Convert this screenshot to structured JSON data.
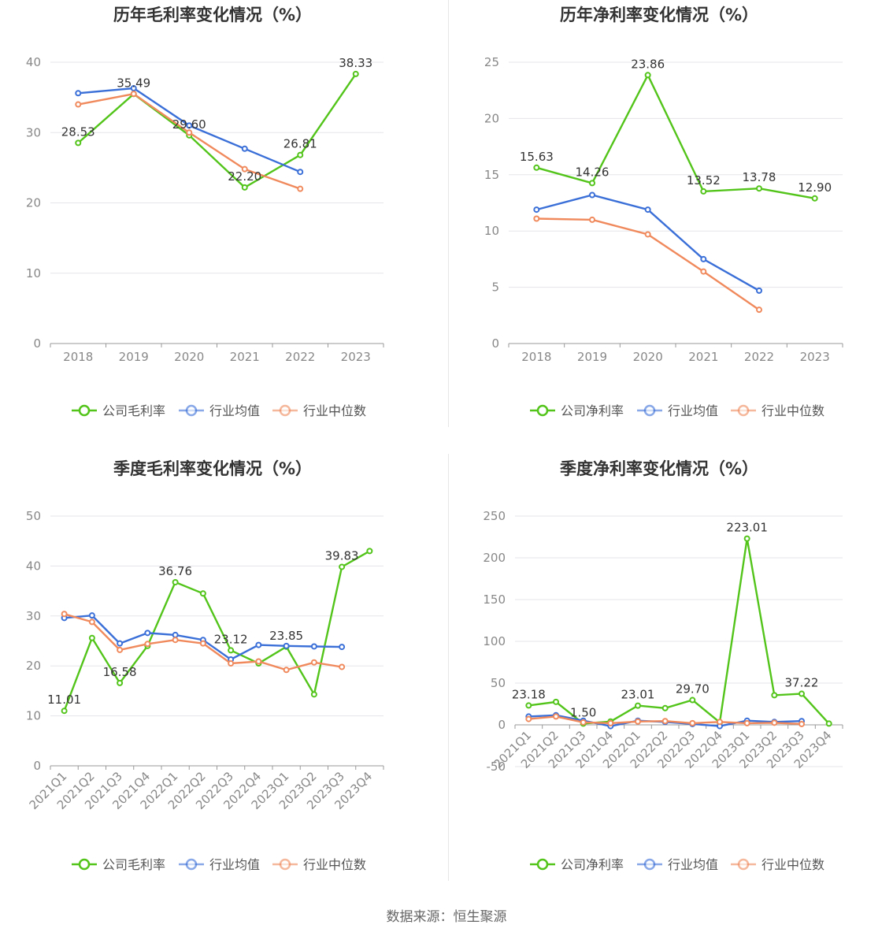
{
  "source_label": "数据来源：恒生聚源",
  "colors": {
    "company": "#52c41a",
    "avg": "#3a6fd8",
    "median": "#f08a5d",
    "grid": "#e5e5ea",
    "axis": "#999999"
  },
  "chart_data": [
    {
      "type": "line",
      "title": "历年毛利率变化情况（%）",
      "categories": [
        "2018",
        "2019",
        "2020",
        "2021",
        "2022",
        "2023"
      ],
      "ylim": [
        0,
        40
      ],
      "yticks": [
        0,
        10,
        20,
        30,
        40
      ],
      "series": [
        {
          "name": "公司毛利率",
          "values": [
            28.53,
            35.49,
            29.6,
            22.2,
            26.81,
            38.33
          ],
          "labels": [
            true,
            true,
            true,
            true,
            true,
            true
          ]
        },
        {
          "name": "行业均值",
          "values": [
            35.6,
            36.3,
            31.0,
            27.7,
            24.4,
            null
          ]
        },
        {
          "name": "行业中位数",
          "values": [
            34.0,
            35.5,
            30.0,
            24.8,
            22.0,
            null
          ]
        }
      ],
      "legend": "bottom"
    },
    {
      "type": "line",
      "title": "历年净利率变化情况（%）",
      "categories": [
        "2018",
        "2019",
        "2020",
        "2021",
        "2022",
        "2023"
      ],
      "ylim": [
        0,
        25
      ],
      "yticks": [
        0,
        5,
        10,
        15,
        20,
        25
      ],
      "series": [
        {
          "name": "公司净利率",
          "values": [
            15.63,
            14.26,
            23.86,
            13.52,
            13.78,
            12.9
          ],
          "labels": [
            true,
            true,
            true,
            true,
            true,
            true
          ]
        },
        {
          "name": "行业均值",
          "values": [
            11.9,
            13.2,
            11.9,
            7.5,
            4.7,
            null
          ]
        },
        {
          "name": "行业中位数",
          "values": [
            11.1,
            11.0,
            9.7,
            6.4,
            3.0,
            null
          ]
        }
      ],
      "legend": "bottom"
    },
    {
      "type": "line",
      "title": "季度毛利率变化情况（%）",
      "categories": [
        "2021Q1",
        "2021Q2",
        "2021Q3",
        "2021Q4",
        "2022Q1",
        "2022Q2",
        "2022Q3",
        "2022Q4",
        "2023Q1",
        "2023Q2",
        "2023Q3",
        "2023Q4"
      ],
      "ylim": [
        0,
        50
      ],
      "yticks": [
        0,
        10,
        20,
        30,
        40,
        50
      ],
      "series": [
        {
          "name": "公司毛利率",
          "values": [
            11.01,
            25.6,
            16.58,
            24.0,
            36.76,
            34.5,
            23.12,
            20.5,
            23.85,
            14.3,
            39.83,
            43.0
          ],
          "labels": [
            true,
            false,
            true,
            false,
            true,
            false,
            true,
            false,
            true,
            false,
            true,
            false
          ]
        },
        {
          "name": "行业均值",
          "values": [
            29.6,
            30.1,
            24.5,
            26.6,
            26.2,
            25.2,
            21.3,
            24.2,
            24.0,
            23.9,
            23.8,
            null
          ]
        },
        {
          "name": "行业中位数",
          "values": [
            30.4,
            28.8,
            23.2,
            24.4,
            25.2,
            24.5,
            20.5,
            20.9,
            19.2,
            20.7,
            19.8,
            null
          ]
        }
      ],
      "legend": "bottom"
    },
    {
      "type": "line",
      "title": "季度净利率变化情况（%）",
      "categories": [
        "2021Q1",
        "2021Q2",
        "2021Q3",
        "2021Q4",
        "2022Q1",
        "2022Q2",
        "2022Q3",
        "2022Q4",
        "2023Q1",
        "2023Q2",
        "2023Q3",
        "2023Q4"
      ],
      "ylim": [
        -50,
        250
      ],
      "yticks": [
        -50,
        0,
        50,
        100,
        150,
        200,
        250
      ],
      "series": [
        {
          "name": "公司净利率",
          "values": [
            23.18,
            27.5,
            1.5,
            4.0,
            23.01,
            20.0,
            29.7,
            3.0,
            223.01,
            35.5,
            37.22,
            1.5
          ],
          "labels": [
            true,
            false,
            true,
            false,
            true,
            false,
            true,
            false,
            true,
            false,
            true,
            false
          ]
        },
        {
          "name": "行业均值",
          "values": [
            10.0,
            11.5,
            5.0,
            -1.5,
            5.0,
            3.5,
            1.0,
            -1.5,
            5.0,
            3.5,
            4.5,
            null
          ]
        },
        {
          "name": "行业中位数",
          "values": [
            7.0,
            10.0,
            3.0,
            2.0,
            4.0,
            4.5,
            2.0,
            3.5,
            2.0,
            2.5,
            1.0,
            null
          ]
        }
      ],
      "legend": "bottom"
    }
  ]
}
